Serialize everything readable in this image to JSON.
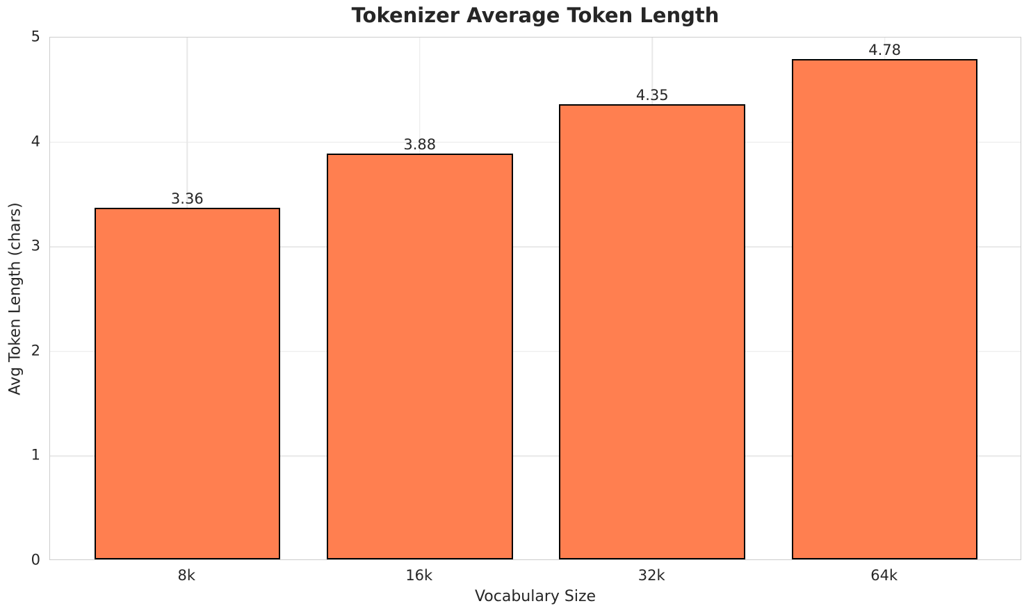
{
  "chart_data": {
    "type": "bar",
    "title": "Tokenizer Average Token Length",
    "xlabel": "Vocabulary Size",
    "ylabel": "Avg Token Length (chars)",
    "categories": [
      "8k",
      "16k",
      "32k",
      "64k"
    ],
    "values": [
      3.36,
      3.88,
      4.35,
      4.78
    ],
    "value_labels": [
      "3.36",
      "3.88",
      "4.35",
      "4.78"
    ],
    "ylim": [
      0,
      5
    ],
    "yticks": [
      0,
      1,
      2,
      3,
      4,
      5
    ],
    "ytick_labels": [
      "0",
      "1",
      "2",
      "3",
      "4",
      "5"
    ],
    "xlim": [
      -0.59,
      3.59
    ],
    "bar_width": 0.8,
    "grid": true,
    "legend": false,
    "colors": {
      "bar_fill": "#FF7F50",
      "bar_edge": "#000000",
      "grid": "#e8e8e8",
      "spine": "#cccccc",
      "text": "#262626",
      "background": "#ffffff"
    }
  }
}
